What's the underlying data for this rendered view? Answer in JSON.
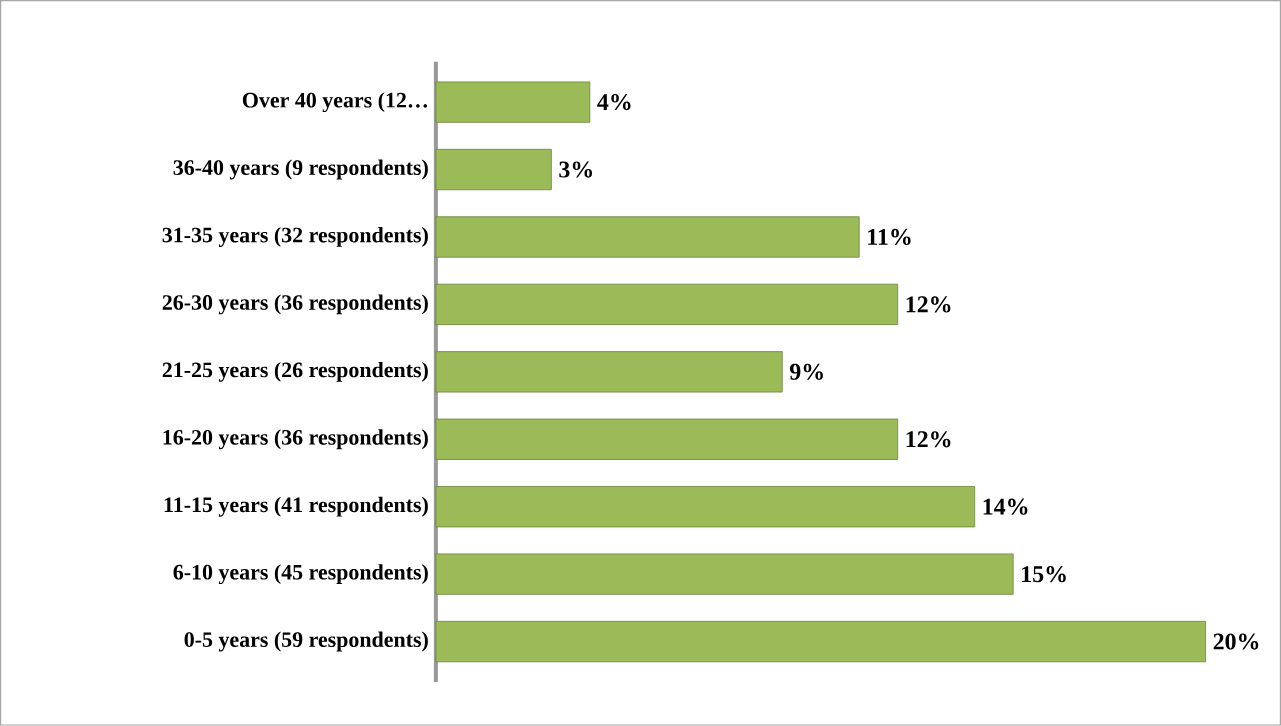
{
  "chart_data": {
    "type": "bar",
    "orientation": "horizontal",
    "categories": [
      "Over 40 years (12…",
      "36-40 years (9 respondents)",
      "31-35 years (32 respondents)",
      "26-30 years (36 respondents)",
      "21-25 years (26 respondents)",
      "16-20 years (36 respondents)",
      "11-15 years (41 respondents)",
      "6-10 years (45 respondents)",
      "0-5 years  (59 respondents)"
    ],
    "values": [
      4,
      3,
      11,
      12,
      9,
      12,
      14,
      15,
      20
    ],
    "value_labels": [
      "4%",
      "3%",
      "11%",
      "12%",
      "9%",
      "12%",
      "14%",
      "15%",
      "20%"
    ],
    "color": "#9bbb59",
    "tick_labels": "y"
  }
}
